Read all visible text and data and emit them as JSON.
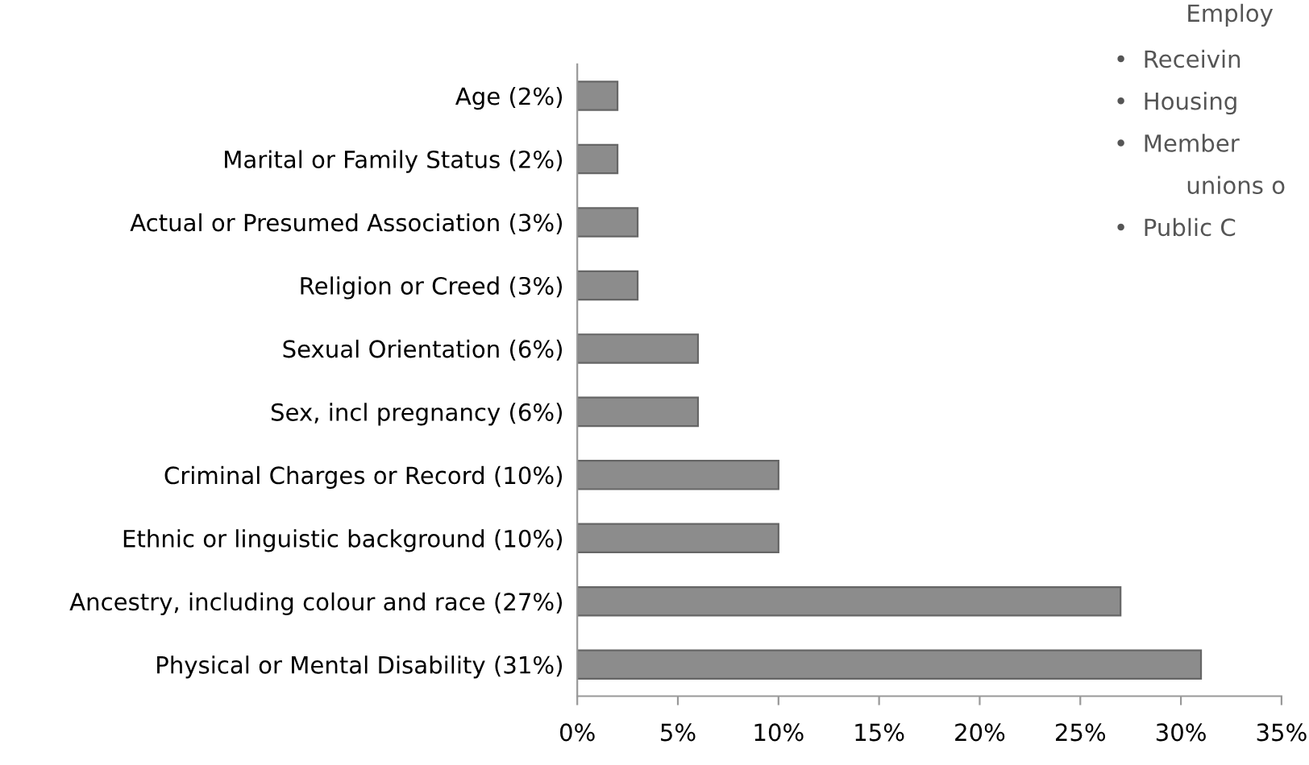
{
  "chart_data": {
    "type": "bar",
    "orientation": "horizontal",
    "categories": [
      "Age (2%)",
      "Marital or Family Status (2%)",
      "Actual or Presumed Association (3%)",
      "Religion or Creed (3%)",
      "Sexual Orientation (6%)",
      "Sex, incl pregnancy (6%)",
      "Criminal Charges or Record (10%)",
      "Ethnic or linguistic background (10%)",
      "Ancestry, including colour and race (27%)",
      "Physical or Mental Disability (31%)"
    ],
    "values": [
      2,
      2,
      3,
      3,
      6,
      6,
      10,
      10,
      27,
      31
    ],
    "color": "#8c8c8c",
    "xlim": [
      0,
      35
    ],
    "xticks": [
      {
        "value": 0,
        "label": "0%"
      },
      {
        "value": 5,
        "label": "5%"
      },
      {
        "value": 10,
        "label": "10%"
      },
      {
        "value": 15,
        "label": "15%"
      },
      {
        "value": 20,
        "label": "20%"
      },
      {
        "value": 25,
        "label": "25%"
      },
      {
        "value": 30,
        "label": "30%"
      },
      {
        "value": 35,
        "label": "35%"
      }
    ],
    "grid": false,
    "legend": false,
    "annotations": [
      "Employ",
      "•  Receivin",
      "•  Housing",
      "•  Member",
      "unions o",
      "•  Public C"
    ]
  }
}
